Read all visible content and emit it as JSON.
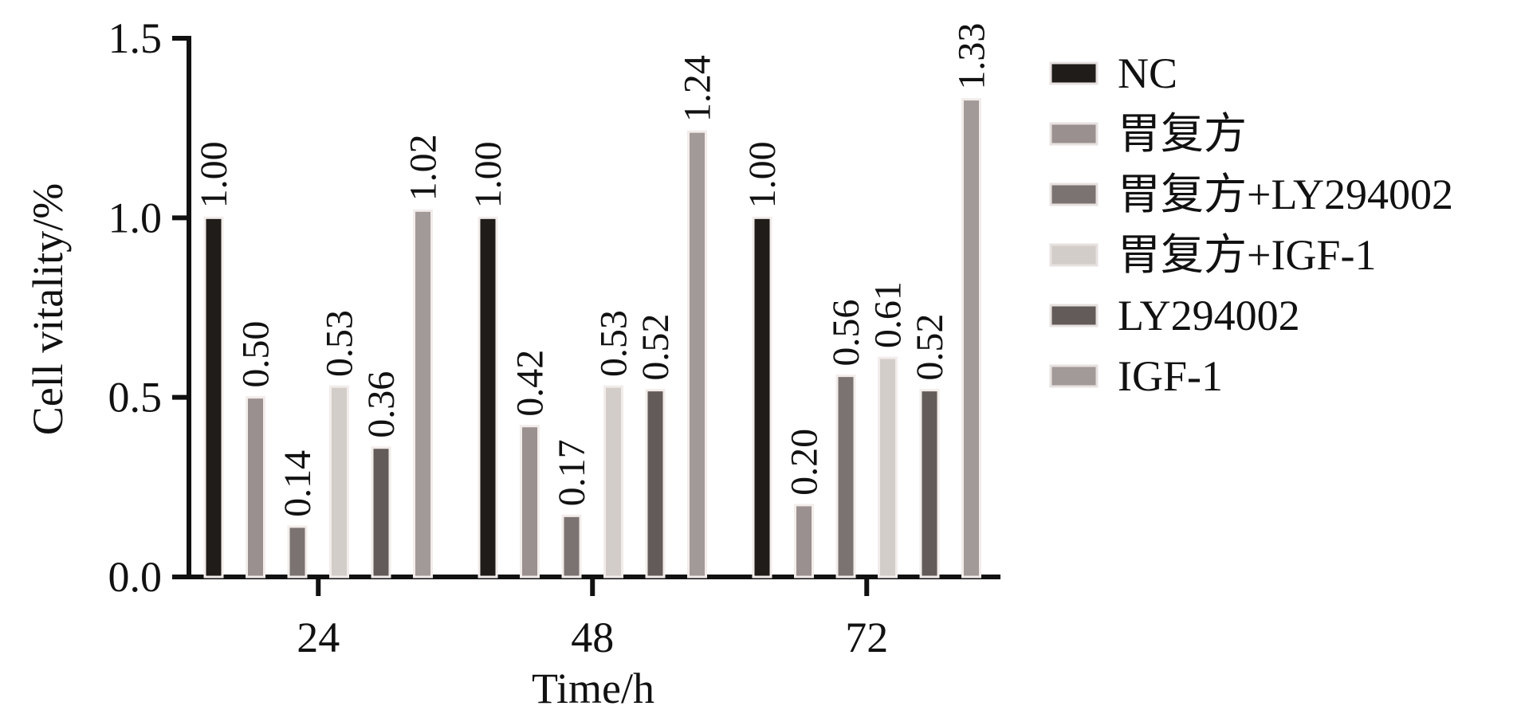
{
  "chart_data": {
    "type": "bar",
    "xlabel": "Time/h",
    "ylabel": "Cell vitality/%",
    "ylim": [
      0,
      1.5
    ],
    "yticks": [
      "0.0",
      "0.5",
      "1.0",
      "1.5"
    ],
    "categories": [
      "24",
      "48",
      "72"
    ],
    "series": [
      {
        "name": "NC",
        "values": [
          1.0,
          1.0,
          1.0
        ],
        "labels": [
          "1.00",
          "1.00",
          "1.00"
        ],
        "color": "#1f1c1a"
      },
      {
        "name": "胃复方",
        "values": [
          0.5,
          0.42,
          0.2
        ],
        "labels": [
          "0.50",
          "0.42",
          "0.20"
        ],
        "color": "#9a9090"
      },
      {
        "name": "胃复方+LY294002",
        "values": [
          0.14,
          0.17,
          0.56
        ],
        "labels": [
          "0.14",
          "0.17",
          "0.56"
        ],
        "color": "#7b7371"
      },
      {
        "name": "胃复方+IGF-1",
        "values": [
          0.53,
          0.53,
          0.61
        ],
        "labels": [
          "0.53",
          "0.53",
          "0.61"
        ],
        "color": "#d3cdca"
      },
      {
        "name": "LY294002",
        "values": [
          0.36,
          0.52,
          0.52
        ],
        "labels": [
          "0.36",
          "0.52",
          "0.52"
        ],
        "color": "#625b59"
      },
      {
        "name": "IGF-1",
        "values": [
          1.02,
          1.24,
          1.33
        ],
        "labels": [
          "1.02",
          "1.24",
          "1.33"
        ],
        "color": "#a29a98"
      }
    ],
    "legend_position": "right",
    "grid": false
  }
}
